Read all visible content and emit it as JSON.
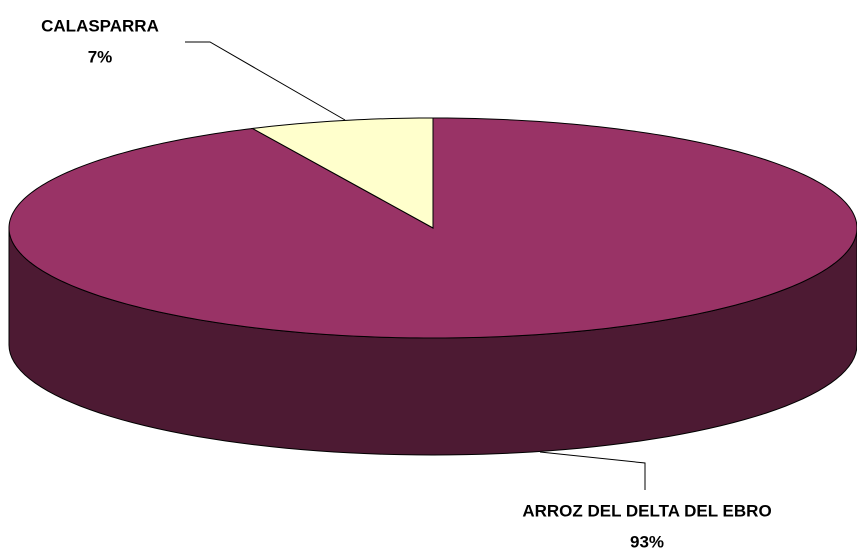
{
  "chart_data": {
    "type": "pie",
    "three_d": true,
    "categories": [
      "ARROZ DEL DELTA DEL EBRO",
      "CALASPARRA"
    ],
    "values": [
      93,
      7
    ],
    "value_labels": [
      "93%",
      "7%"
    ],
    "colors": [
      "#993366",
      "#ffffcc"
    ]
  }
}
